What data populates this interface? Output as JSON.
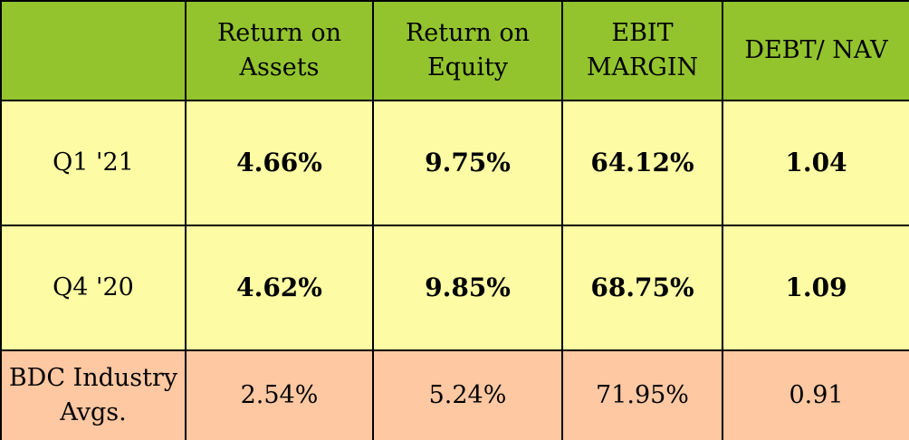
{
  "colors": {
    "header_bg": "#93c42e",
    "row_bg": "#fdfca4",
    "industry_row_bg": "#fdc8a2",
    "border": "#000000"
  },
  "chart_data": {
    "type": "table",
    "columns": [
      "",
      "Return on Assets",
      "Return on Equity",
      "EBIT MARGIN",
      "DEBT/ NAV"
    ],
    "header_lines": [
      [
        ""
      ],
      [
        "Return on",
        "Assets"
      ],
      [
        "Return on",
        "Equity"
      ],
      [
        "EBIT",
        "MARGIN"
      ],
      [
        "DEBT/ NAV"
      ]
    ],
    "rows": [
      {
        "label": "Q1 '21",
        "values": [
          "4.66%",
          "9.75%",
          "64.12%",
          "1.04"
        ]
      },
      {
        "label": "Q4 '20",
        "values": [
          "4.62%",
          "9.85%",
          "68.75%",
          "1.09"
        ]
      },
      {
        "label_lines": [
          "BDC Industry",
          "Avgs."
        ],
        "values": [
          "2.54%",
          "5.24%",
          "71.95%",
          "0.91"
        ]
      }
    ]
  }
}
